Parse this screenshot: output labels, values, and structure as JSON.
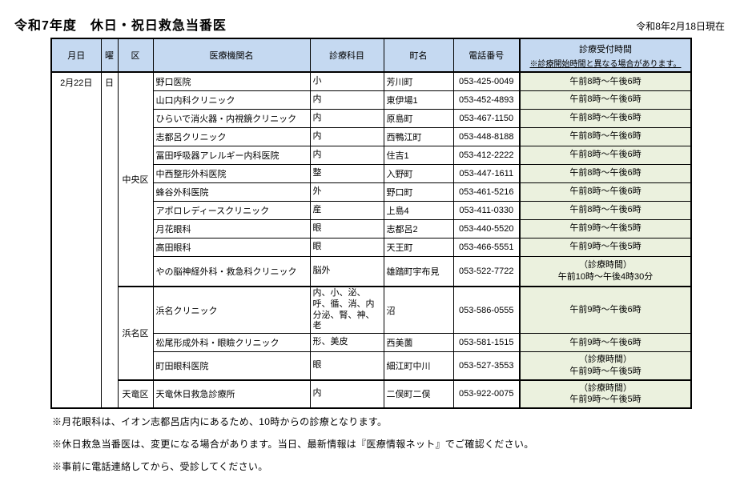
{
  "title": "令和7年度　休日・祝日救急当番医",
  "as_of_date": "令和8年2月18日現在",
  "colors": {
    "header_bg": "#c5d9f1",
    "hours_bg": "#ebf1de",
    "border": "#000000"
  },
  "table": {
    "headers": {
      "date": "月日",
      "day": "曜",
      "ward": "区",
      "institution": "医療機関名",
      "departments": "診療科目",
      "town": "町名",
      "phone": "電話番号",
      "hours_line1": "診療受付時間",
      "hours_note": "※診療開始時間と異なる場合があります。"
    },
    "date_value": "2月22日",
    "day_value": "日",
    "wards": [
      {
        "name": "中央区",
        "rows": 11
      },
      {
        "name": "浜名区",
        "rows": 3
      },
      {
        "name": "天竜区",
        "rows": 1
      }
    ],
    "rows": [
      {
        "institution": "野口医院",
        "departments": "小",
        "town": "芳川町",
        "phone": "053-425-0049",
        "hours": "午前8時～午後6時"
      },
      {
        "institution": "山口内科クリニック",
        "departments": "内",
        "town": "東伊場1",
        "phone": "053-452-4893",
        "hours": "午前8時～午後6時"
      },
      {
        "institution": "ひらいで消火器・内視鏡クリニック",
        "departments": "内",
        "town": "原島町",
        "phone": "053-467-1150",
        "hours": "午前8時～午後6時"
      },
      {
        "institution": "志都呂クリニック",
        "departments": "内",
        "town": "西鴨江町",
        "phone": "053-448-8188",
        "hours": "午前8時～午後6時"
      },
      {
        "institution": "冨田呼吸器アレルギー内科医院",
        "departments": "内",
        "town": "住吉1",
        "phone": "053-412-2222",
        "hours": "午前8時～午後6時"
      },
      {
        "institution": "中西整形外科医院",
        "departments": "整",
        "town": "入野町",
        "phone": "053-447-1611",
        "hours": "午前8時～午後6時"
      },
      {
        "institution": "蜂谷外科医院",
        "departments": "外",
        "town": "野口町",
        "phone": "053-461-5216",
        "hours": "午前8時～午後6時"
      },
      {
        "institution": "アポロレディースクリニック",
        "departments": "産",
        "town": "上島4",
        "phone": "053-411-0330",
        "hours": "午前8時～午後6時"
      },
      {
        "institution": "月花眼科",
        "departments": "眼",
        "town": "志都呂2",
        "phone": "053-440-5520",
        "hours": "午前9時～午後5時"
      },
      {
        "institution": "高田眼科",
        "departments": "眼",
        "town": "天王町",
        "phone": "053-466-5551",
        "hours": "午前9時～午後5時"
      },
      {
        "institution": "やの脳神経外科・救急科クリニック",
        "departments": "脳外",
        "town": "雄踏町宇布見",
        "phone": "053-522-7722",
        "hours": "（診療時間）\n午前10時～午後4時30分"
      },
      {
        "institution": "浜名クリニック",
        "departments": "内、小、泌、呼、循、消、内分泌、腎、神、老",
        "town": "沼",
        "phone": "053-586-0555",
        "hours": "午前9時～午後6時"
      },
      {
        "institution": "松尾形成外科・眼瞼クリニック",
        "departments": "形、美皮",
        "town": "西美薗",
        "phone": "053-581-1515",
        "hours": "午前9時～午後6時"
      },
      {
        "institution": "町田眼科医院",
        "departments": "眼",
        "town": "細江町中川",
        "phone": "053-527-3553",
        "hours": "（診療時間）\n午前9時～午後5時"
      },
      {
        "institution": "天竜休日救急診療所",
        "departments": "内",
        "town": "二俣町二俣",
        "phone": "053-922-0075",
        "hours": "（診療時間）\n午前9時～午後5時"
      }
    ]
  },
  "notes": [
    "※月花眼科は、イオン志都呂店内にあるため、10時からの診療となります。",
    "※休日救急当番医は、変更になる場合があります。当日、最新情報は『医療情報ネット』でご確認ください。",
    "※事前に電話連絡してから、受診してください。"
  ]
}
